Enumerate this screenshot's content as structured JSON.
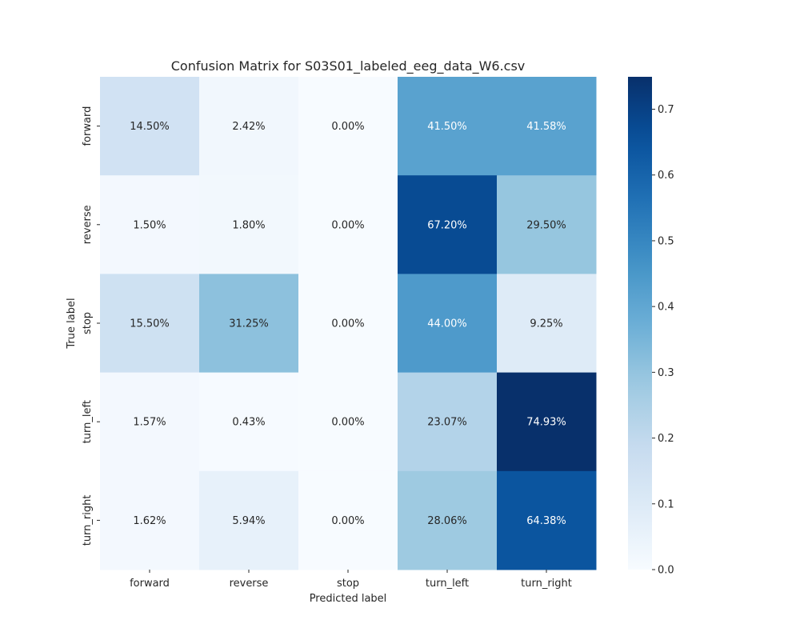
{
  "chart_data": {
    "type": "heatmap",
    "title": "Confusion Matrix for S03S01_labeled_eeg_data_W6.csv",
    "xlabel": "Predicted label",
    "ylabel": "True label",
    "x_categories": [
      "forward",
      "reverse",
      "stop",
      "turn_left",
      "turn_right"
    ],
    "y_categories": [
      "forward",
      "reverse",
      "stop",
      "turn_left",
      "turn_right"
    ],
    "values": [
      [
        0.145,
        0.0242,
        0.0,
        0.415,
        0.4158
      ],
      [
        0.015,
        0.018,
        0.0,
        0.672,
        0.295
      ],
      [
        0.155,
        0.3125,
        0.0,
        0.44,
        0.0925
      ],
      [
        0.0157,
        0.0043,
        0.0,
        0.2307,
        0.7493
      ],
      [
        0.0162,
        0.0594,
        0.0,
        0.2806,
        0.6438
      ]
    ],
    "annotations": [
      [
        "14.50%",
        "2.42%",
        "0.00%",
        "41.50%",
        "41.58%"
      ],
      [
        "1.50%",
        "1.80%",
        "0.00%",
        "67.20%",
        "29.50%"
      ],
      [
        "15.50%",
        "31.25%",
        "0.00%",
        "44.00%",
        "9.25%"
      ],
      [
        "1.57%",
        "0.43%",
        "0.00%",
        "23.07%",
        "74.93%"
      ],
      [
        "1.62%",
        "5.94%",
        "0.00%",
        "28.06%",
        "64.38%"
      ]
    ],
    "colormap": "Blues",
    "colorbar": {
      "range": [
        0,
        0.7493
      ],
      "ticks": [
        0.0,
        0.1,
        0.2,
        0.3,
        0.4,
        0.5,
        0.6,
        0.7
      ],
      "tick_labels": [
        "0.0",
        "0.1",
        "0.2",
        "0.3",
        "0.4",
        "0.5",
        "0.6",
        "0.7"
      ]
    },
    "colors": [
      "#f7fbff",
      "#deebf7",
      "#c6dbef",
      "#9ecae1",
      "#6baed6",
      "#4292c6",
      "#2171b5",
      "#08519c",
      "#08306b"
    ]
  }
}
